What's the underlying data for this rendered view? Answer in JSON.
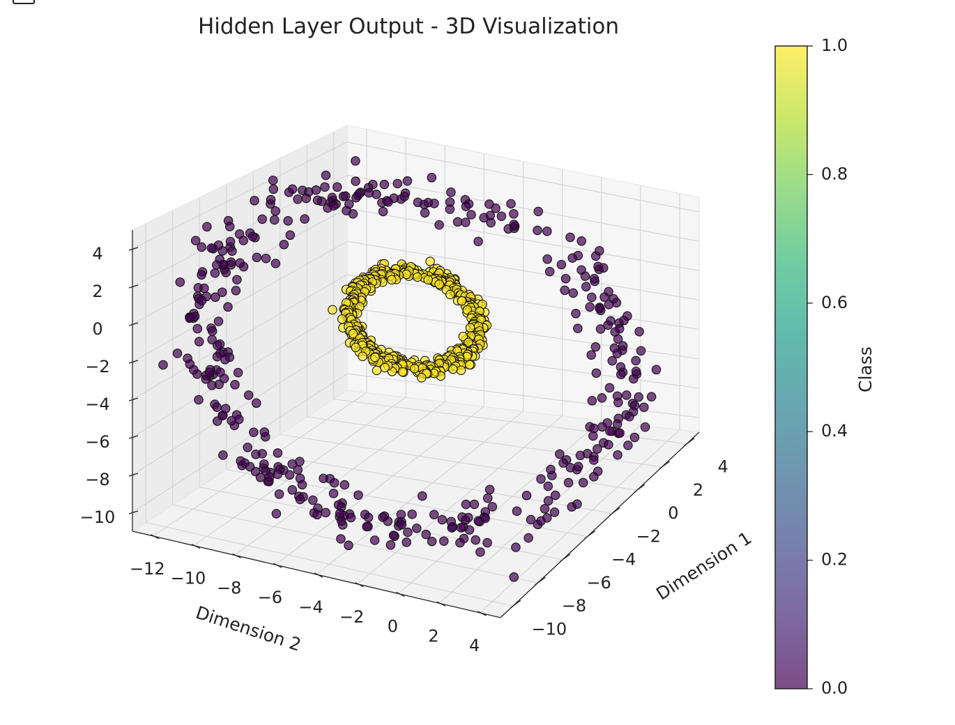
{
  "chart_data": {
    "type": "scatter",
    "projection": "3d",
    "title": "Hidden Layer Output - 3D Visualization",
    "axes": {
      "x": {
        "label": "Dimension 1",
        "lim": [
          -11,
          5
        ],
        "ticks": [
          -10,
          -8,
          -6,
          -4,
          -2,
          0,
          2,
          4
        ],
        "tick_labels": [
          "−10",
          "−8",
          "−6",
          "−4",
          "−2",
          "0",
          "2",
          "4"
        ]
      },
      "y": {
        "label": "Dimension 2",
        "lim": [
          -13,
          5
        ],
        "ticks": [
          -12,
          -10,
          -8,
          -6,
          -4,
          -2,
          0,
          2,
          4
        ],
        "tick_labels": [
          "−12",
          "−10",
          "−8",
          "−6",
          "−4",
          "−2",
          "0",
          "2",
          "4"
        ]
      },
      "z": {
        "label": "",
        "lim": [
          -11,
          5
        ],
        "ticks": [
          -10,
          -8,
          -6,
          -4,
          -2,
          0,
          2,
          4
        ],
        "tick_labels": [
          "−10",
          "−8",
          "−6",
          "−4",
          "−2",
          "0",
          "2",
          "4"
        ]
      }
    },
    "grid": true,
    "colorbar": {
      "label": "Class",
      "range": [
        0,
        1
      ],
      "ticks": [
        0.0,
        0.2,
        0.4,
        0.6,
        0.8,
        1.0
      ],
      "tick_labels": [
        "0.0",
        "0.2",
        "0.4",
        "0.6",
        "0.8",
        "1.0"
      ],
      "colormap": "viridis",
      "stops": [
        "#440154",
        "#482878",
        "#3e4989",
        "#31688e",
        "#26828e",
        "#1f9e89",
        "#35b779",
        "#6ece58",
        "#b5de2b",
        "#fde725"
      ],
      "alpha": 0.7
    },
    "series": [
      {
        "class": 0,
        "color": "#440154",
        "shape": "ring",
        "center": [
          -3.5,
          -4.0,
          -3.0
        ],
        "radius": 9.0,
        "count": 420
      },
      {
        "class": 1,
        "color": "#fde725",
        "shape": "ring",
        "center": [
          -3.5,
          -4.0,
          -1.2
        ],
        "radius": 2.7,
        "count": 560
      }
    ]
  }
}
